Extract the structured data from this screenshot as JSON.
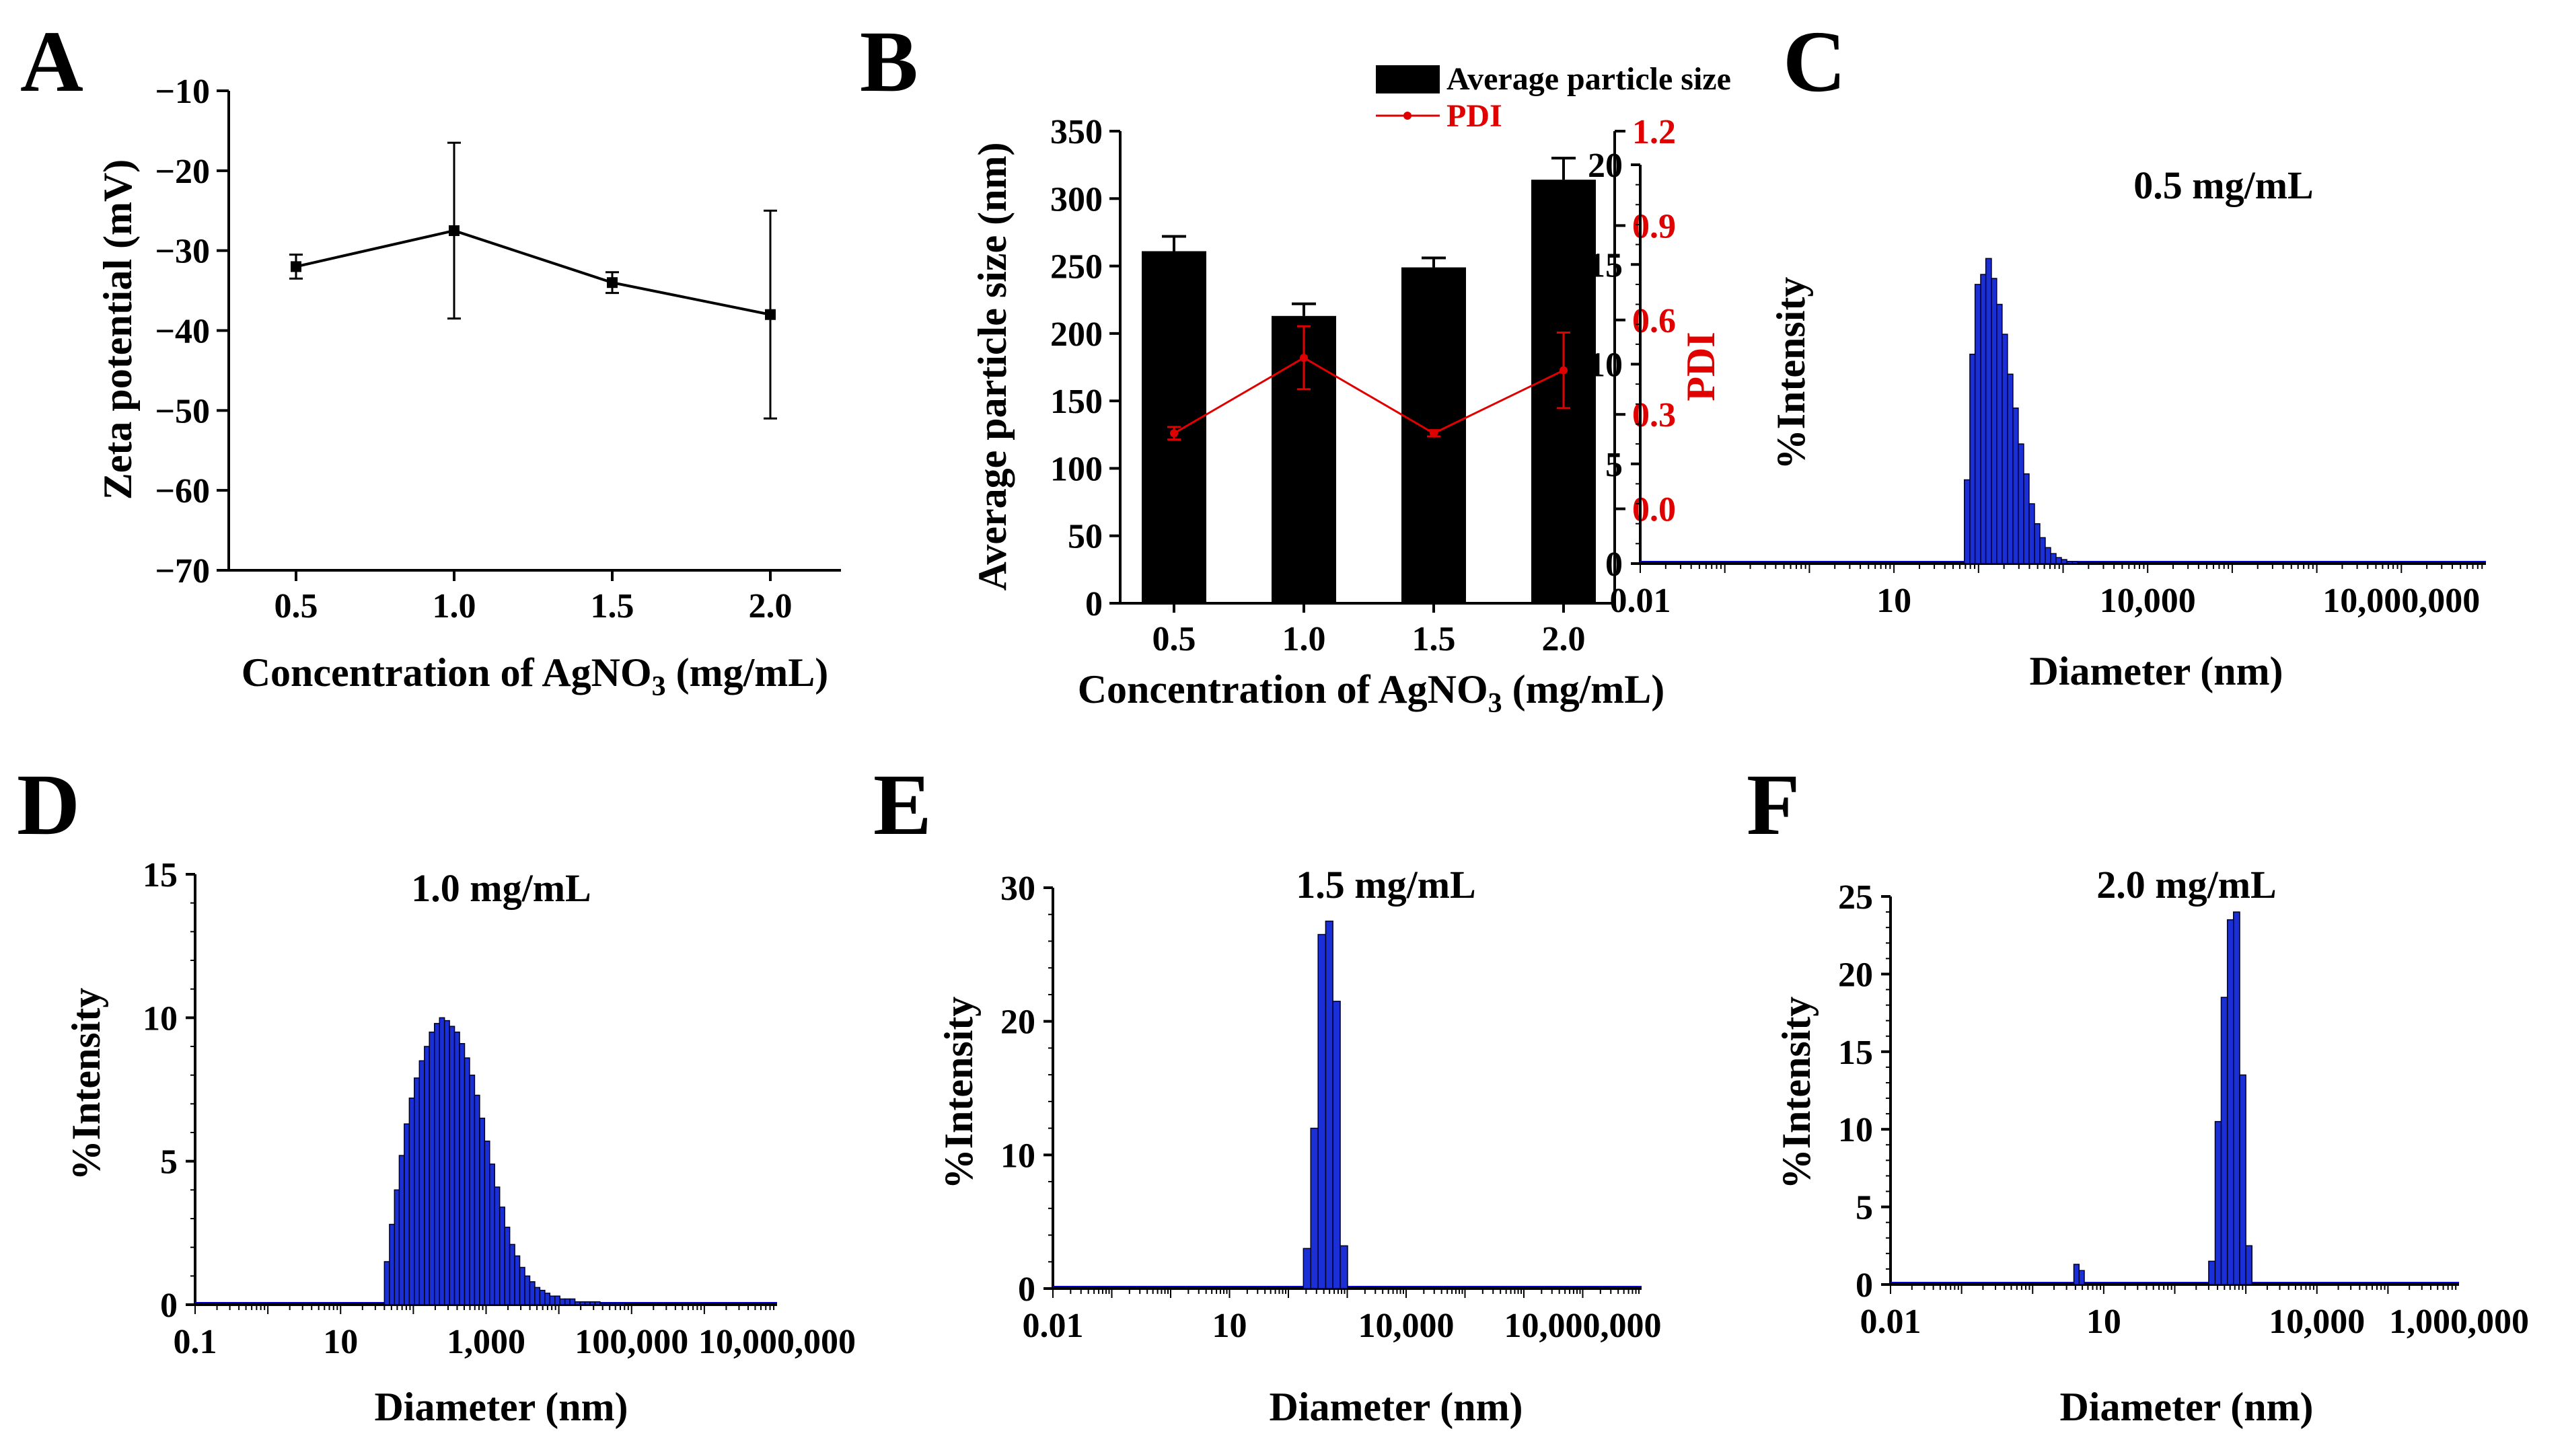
{
  "chart_data": [
    {
      "id": "A",
      "type": "line",
      "panel_letter": "A",
      "xlabel": "Concentration of AgNO3 (mg/mL)",
      "ylabel": "Zeta potential  (mV)",
      "categories": [
        "0.5",
        "1.0",
        "1.5",
        "2.0"
      ],
      "series": [
        {
          "name": "Zeta potential",
          "values": [
            -32,
            -27.5,
            -34,
            -38
          ],
          "errors": [
            1.5,
            11,
            1.3,
            13
          ]
        }
      ],
      "ylim": [
        -70,
        -10
      ],
      "yticks": [
        "−10",
        "−20",
        "−30",
        "−40",
        "−50",
        "−60",
        "−70"
      ]
    },
    {
      "id": "B",
      "type": "bar",
      "panel_letter": "B",
      "xlabel": "Concentration of AgNO3 (mg/mL)",
      "ylabel": "Average particle size (nm)",
      "ylabel_right": "PDI",
      "categories": [
        "0.5",
        "1.0",
        "1.5",
        "2.0"
      ],
      "series": [
        {
          "name": "Average particle size",
          "axis": "left",
          "values": [
            261,
            213,
            249,
            314
          ],
          "errors": [
            11,
            9,
            7,
            16
          ]
        },
        {
          "name": "PDI",
          "axis": "right",
          "values": [
            0.24,
            0.48,
            0.24,
            0.44
          ],
          "errors": [
            0.02,
            0.1,
            0.01,
            0.12
          ]
        }
      ],
      "ylim": [
        0,
        350
      ],
      "ylim_right": [
        -0.3,
        1.2
      ],
      "yticks": [
        "0",
        "50",
        "100",
        "150",
        "200",
        "250",
        "300",
        "350"
      ],
      "yticks_right": [
        "0.0",
        "0.3",
        "0.6",
        "0.9",
        "1.2"
      ],
      "legend": [
        "Average particle size",
        "PDI"
      ]
    },
    {
      "id": "C",
      "type": "bar",
      "panel_letter": "C",
      "title": "0.5 mg/mL",
      "xlabel": "Diameter (nm)",
      "ylabel": "%Intensity",
      "xscale": "log",
      "xlim": [
        0.01,
        100000000
      ],
      "ylim": [
        0,
        20
      ],
      "xticks": [
        {
          "value": 0.01,
          "label": "0.01"
        },
        {
          "value": 10,
          "label": "10"
        },
        {
          "value": 10000,
          "label": "10,000"
        },
        {
          "value": 10000000,
          "label": "10,000,000"
        }
      ],
      "yticks": [
        "0",
        "5",
        "10",
        "15",
        "20"
      ],
      "x": [
        68,
        79,
        91,
        106,
        122,
        142,
        164,
        190,
        220,
        255,
        295,
        342,
        396,
        459,
        531,
        615,
        712,
        825,
        955,
        1106,
        1281,
        1484,
        1718,
        1990,
        2305
      ],
      "values": [
        4.2,
        10.5,
        14.0,
        14.5,
        15.3,
        14.3,
        13.0,
        11.5,
        9.5,
        7.8,
        6.0,
        4.5,
        3.0,
        2.0,
        1.3,
        0.8,
        0.5,
        0.3,
        0.2,
        0.1,
        0.1,
        0.05,
        0.05,
        0.03,
        0.02
      ]
    },
    {
      "id": "D",
      "type": "bar",
      "panel_letter": "D",
      "title": "1.0 mg/mL",
      "xlabel": "Diameter (nm)",
      "ylabel": "%Intensity",
      "xscale": "log",
      "xlim": [
        0.1,
        10000000
      ],
      "ylim": [
        0,
        15
      ],
      "xticks": [
        {
          "value": 0.1,
          "label": "0.1"
        },
        {
          "value": 10,
          "label": "10"
        },
        {
          "value": 1000,
          "label": "1,000"
        },
        {
          "value": 100000,
          "label": "100,000"
        },
        {
          "value": 10000000,
          "label": "10,000,000"
        }
      ],
      "yticks": [
        "0",
        "5",
        "10",
        "15"
      ],
      "x": [
        40,
        47,
        55,
        64,
        75,
        88,
        103,
        121,
        142,
        166,
        195,
        229,
        268,
        314,
        368,
        432,
        506,
        593,
        695,
        815,
        955,
        1119,
        1312,
        1538,
        1803,
        2113,
        2477,
        2903,
        3403,
        3989,
        4676,
        5481,
        6424,
        7530,
        8826,
        10346,
        12127,
        14215,
        16662,
        19531,
        22894,
        26836,
        31457,
        36873,
        43222,
        50665,
        59388,
        69614
      ],
      "values": [
        1.5,
        2.8,
        4.0,
        5.2,
        6.3,
        7.2,
        7.9,
        8.5,
        9.0,
        9.5,
        9.8,
        10.0,
        9.9,
        9.7,
        9.5,
        9.1,
        8.6,
        8.0,
        7.3,
        6.5,
        5.7,
        4.9,
        4.1,
        3.4,
        2.7,
        2.1,
        1.7,
        1.3,
        1.0,
        0.8,
        0.6,
        0.5,
        0.4,
        0.3,
        0.3,
        0.2,
        0.2,
        0.2,
        0.1,
        0.1,
        0.1,
        0.1,
        0.1,
        0.05,
        0.05,
        0.05,
        0.05,
        0.05
      ]
    },
    {
      "id": "E",
      "type": "bar",
      "panel_letter": "E",
      "title": "1.5 mg/mL",
      "xlabel": "Diameter (nm)",
      "ylabel": "%Intensity",
      "xscale": "log",
      "xlim": [
        0.01,
        100000000
      ],
      "ylim": [
        0,
        30
      ],
      "xticks": [
        {
          "value": 0.01,
          "label": "0.01"
        },
        {
          "value": 10,
          "label": "10"
        },
        {
          "value": 10000,
          "label": "10,000"
        },
        {
          "value": 10000000,
          "label": "10,000,000"
        }
      ],
      "yticks": [
        "0",
        "10",
        "20",
        "30"
      ],
      "x": [
        180,
        240,
        320,
        430,
        570,
        760
      ],
      "values": [
        3.0,
        12.0,
        26.5,
        27.5,
        21.5,
        3.2
      ]
    },
    {
      "id": "F",
      "type": "bar",
      "panel_letter": "F",
      "title": "2.0 mg/mL",
      "xlabel": "Diameter (nm)",
      "ylabel": "%Intensity",
      "xscale": "log",
      "xlim": [
        0.01,
        1000000
      ],
      "ylim": [
        0,
        25
      ],
      "xticks": [
        {
          "value": 0.01,
          "label": "0.01"
        },
        {
          "value": 10,
          "label": "10"
        },
        {
          "value": 10000,
          "label": "10,000"
        },
        {
          "value": 1000000,
          "label": "1,000,000"
        }
      ],
      "yticks": [
        "0",
        "5",
        "10",
        "15",
        "20",
        "25"
      ],
      "x": [
        3.8,
        4.5,
        300,
        370,
        450,
        550,
        670,
        820,
        1000
      ],
      "values": [
        1.3,
        0.9,
        1.5,
        10.5,
        18.5,
        23.5,
        24.0,
        13.5,
        2.5
      ]
    }
  ]
}
